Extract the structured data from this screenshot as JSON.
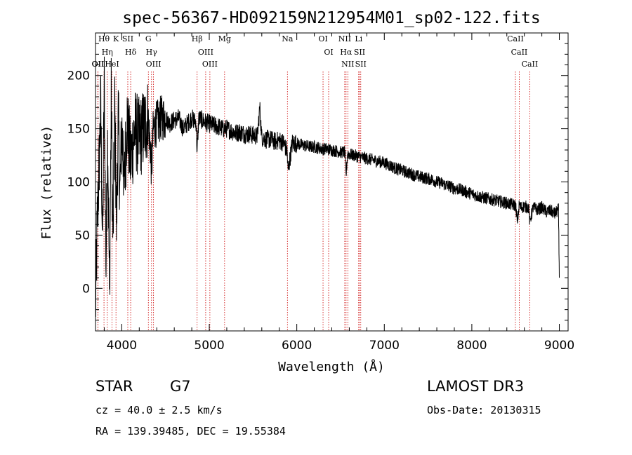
{
  "chart_data": {
    "type": "line",
    "title": "spec-56367-HD092159N212954M01_sp02-122.fits",
    "xlabel": "Wavelength (Å)",
    "ylabel": "Flux (relative)",
    "xlim": [
      3700,
      9100
    ],
    "ylim": [
      -40,
      240
    ],
    "xticks": [
      4000,
      5000,
      6000,
      7000,
      8000,
      9000
    ],
    "yticks": [
      0,
      50,
      100,
      150,
      200
    ],
    "series": [
      {
        "name": "flux",
        "x": [
          3700,
          3720,
          3740,
          3760,
          3780,
          3800,
          3820,
          3840,
          3860,
          3880,
          3900,
          3920,
          3940,
          3960,
          3980,
          4000,
          4030,
          4060,
          4100,
          4150,
          4200,
          4250,
          4300,
          4330,
          4340,
          4360,
          4400,
          4450,
          4500,
          4550,
          4600,
          4650,
          4700,
          4750,
          4800,
          4850,
          4861,
          4880,
          4920,
          4960,
          5000,
          5050,
          5100,
          5150,
          5200,
          5250,
          5300,
          5350,
          5400,
          5450,
          5500,
          5550,
          5577,
          5600,
          5650,
          5700,
          5750,
          5800,
          5850,
          5890,
          5900,
          5950,
          6000,
          6050,
          6100,
          6150,
          6200,
          6250,
          6300,
          6350,
          6400,
          6450,
          6500,
          6550,
          6563,
          6580,
          6600,
          6650,
          6700,
          6750,
          6800,
          6850,
          6900,
          6950,
          7000,
          7050,
          7100,
          7150,
          7200,
          7250,
          7300,
          7350,
          7400,
          7450,
          7500,
          7550,
          7600,
          7650,
          7700,
          7750,
          7800,
          7850,
          7900,
          7950,
          8000,
          8050,
          8100,
          8150,
          8200,
          8250,
          8300,
          8350,
          8400,
          8450,
          8500,
          8520,
          8542,
          8560,
          8600,
          8650,
          8662,
          8700,
          8750,
          8800,
          8850,
          8900,
          8950,
          8990,
          9000
        ],
        "values": [
          -20,
          60,
          110,
          170,
          40,
          190,
          20,
          150,
          -10,
          180,
          40,
          170,
          60,
          160,
          90,
          150,
          100,
          160,
          120,
          150,
          140,
          150,
          160,
          130,
          110,
          150,
          155,
          160,
          160,
          155,
          158,
          160,
          150,
          155,
          160,
          156,
          128,
          160,
          158,
          156,
          155,
          153,
          152,
          150,
          150,
          148,
          146,
          147,
          145,
          145,
          144,
          143,
          170,
          142,
          140,
          140,
          138,
          139,
          137,
          128,
          110,
          137,
          136,
          135,
          134,
          133,
          133,
          132,
          131,
          131,
          130,
          129,
          128,
          128,
          105,
          127,
          126,
          125,
          124,
          123,
          122,
          121,
          120,
          119,
          118,
          116,
          114,
          112,
          111,
          109,
          108,
          106,
          105,
          104,
          103,
          102,
          100,
          99,
          97,
          96,
          94,
          93,
          92,
          90,
          89,
          87,
          86,
          85,
          84,
          83,
          82,
          81,
          80,
          79,
          78,
          62,
          79,
          76,
          77,
          76,
          62,
          76,
          74,
          76,
          72,
          73,
          70,
          74,
          10
        ]
      }
    ],
    "emission_lines": [
      {
        "label": "Hθ",
        "wavelength": 3797
      },
      {
        "label": "OII",
        "wavelength": 3727
      },
      {
        "label": "OII",
        "wavelength": 3729
      },
      {
        "label": "Hη",
        "wavelength": 3835
      },
      {
        "label": "HeI",
        "wavelength": 3889
      },
      {
        "label": "K",
        "wavelength": 3934
      },
      {
        "label": "SII",
        "wavelength": 4069
      },
      {
        "label": "Hδ",
        "wavelength": 4102
      },
      {
        "label": "OIII",
        "wavelength": 4363
      },
      {
        "label": "Hγ",
        "wavelength": 4340
      },
      {
        "label": "G",
        "wavelength": 4304
      },
      {
        "label": "Hβ",
        "wavelength": 4861
      },
      {
        "label": "OIII",
        "wavelength": 4959
      },
      {
        "label": "OIII",
        "wavelength": 5007
      },
      {
        "label": "Mg",
        "wavelength": 5175
      },
      {
        "label": "Na",
        "wavelength": 5893
      },
      {
        "label": "OI",
        "wavelength": 6300
      },
      {
        "label": "OI",
        "wavelength": 6364
      },
      {
        "label": "Hα",
        "wavelength": 6563
      },
      {
        "label": "NII",
        "wavelength": 6548
      },
      {
        "label": "NII",
        "wavelength": 6583
      },
      {
        "label": "SII",
        "wavelength": 6717
      },
      {
        "label": "Li",
        "wavelength": 6707
      },
      {
        "label": "SII",
        "wavelength": 6731
      },
      {
        "label": "CaII",
        "wavelength": 8498
      },
      {
        "label": "CaII",
        "wavelength": 8542
      },
      {
        "label": "CaII",
        "wavelength": 8662
      }
    ]
  },
  "info": {
    "object_class": "STAR",
    "subclass": "G7",
    "survey": "LAMOST DR3",
    "redshift": "cz = 40.0 ± 2.5 km/s",
    "obs_date": "Obs-Date: 20130315",
    "coords": "RA = 139.39485, DEC =  19.55384"
  }
}
